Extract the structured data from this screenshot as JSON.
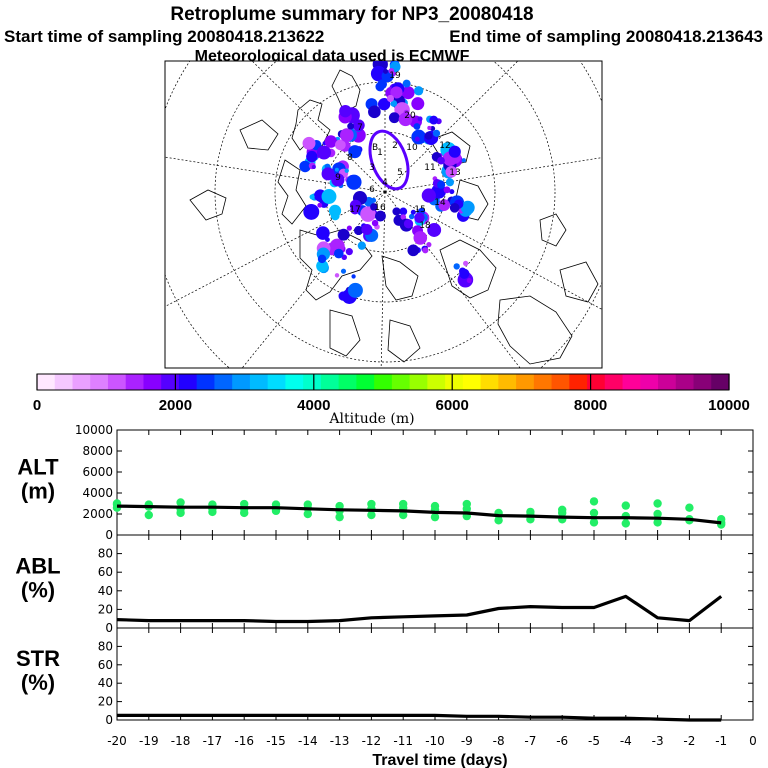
{
  "header": {
    "title": "Retroplume summary for NP3_20080418",
    "start_label": "Start time of sampling 20080418.213622",
    "end_label": "End time of sampling 20080418.213643",
    "met_label": "Meteorological data used is ECMWF"
  },
  "map": {
    "day_labels": [
      "1",
      "2",
      "3",
      "4",
      "5",
      "6",
      "7",
      "8",
      "9",
      "10",
      "11",
      "12",
      "13",
      "14",
      "15",
      "16",
      "17",
      "18",
      "19",
      "20"
    ],
    "center_label": "B"
  },
  "colorbar": {
    "label": "Altitude (m)",
    "range": [
      0,
      10000
    ],
    "tick_labels": [
      "0",
      "2000",
      "4000",
      "6000",
      "8000",
      "10000"
    ],
    "tick_values": [
      0,
      2000,
      4000,
      6000,
      8000,
      10000
    ],
    "colors": [
      "#ffe8ff",
      "#f5c8ff",
      "#eaa0ff",
      "#de80ff",
      "#cc55ff",
      "#aa22ff",
      "#8800ff",
      "#5500ff",
      "#2200ff",
      "#0033ff",
      "#0066ff",
      "#0099ff",
      "#00bbff",
      "#00ddff",
      "#00ffee",
      "#00ffcc",
      "#00ff99",
      "#00ff66",
      "#00ff33",
      "#33ff00",
      "#66ff00",
      "#99ff00",
      "#ccff00",
      "#eeff00",
      "#ffff00",
      "#ffdd00",
      "#ffbb00",
      "#ff9900",
      "#ff7700",
      "#ff5500",
      "#ff2200",
      "#ff0033",
      "#ff0066",
      "#ff0099",
      "#ee00aa",
      "#cc0099",
      "#aa0088",
      "#880077",
      "#660066"
    ]
  },
  "chart_data": [
    {
      "type": "line",
      "panel": "ALT",
      "ylabel": "ALT\n(m)",
      "ylabel_lines": [
        "ALT",
        "(m)"
      ],
      "ylim": [
        0,
        10000
      ],
      "yticks": [
        0,
        2000,
        4000,
        6000,
        8000,
        10000
      ],
      "ytick_labels": [
        "0",
        "2000",
        "4000",
        "6000",
        "8000",
        "10000"
      ],
      "xlim": [
        -20,
        0
      ],
      "x": [
        -20,
        -19,
        -18,
        -17,
        -16,
        -15,
        -14,
        -13,
        -12,
        -11,
        -10,
        -9,
        -8,
        -7,
        -6,
        -5,
        -4,
        -3,
        -2,
        -1
      ],
      "series": [
        {
          "name": "mean altitude",
          "values": [
            2750,
            2700,
            2650,
            2650,
            2600,
            2600,
            2500,
            2400,
            2350,
            2300,
            2150,
            2100,
            1850,
            1800,
            1700,
            1650,
            1650,
            1600,
            1500,
            1150
          ]
        },
        {
          "name": "cluster upper",
          "values": [
            3000,
            2900,
            3100,
            2900,
            2950,
            2900,
            2900,
            2750,
            2950,
            2950,
            2750,
            2950,
            2100,
            2200,
            2400,
            3200,
            2800,
            3000,
            2600,
            1500
          ]
        },
        {
          "name": "cluster mid",
          "values": [
            2600,
            2700,
            2500,
            2500,
            2500,
            2500,
            2550,
            2300,
            2500,
            2600,
            2400,
            2500,
            1900,
            1900,
            2100,
            2100,
            1800,
            2000,
            1500,
            1200
          ]
        },
        {
          "name": "cluster lower",
          "values": [
            2900,
            1900,
            2100,
            2200,
            2100,
            2300,
            2000,
            1700,
            1900,
            1900,
            1700,
            1800,
            1400,
            1500,
            1500,
            1200,
            1100,
            1200,
            1400,
            1000
          ]
        }
      ]
    },
    {
      "type": "line",
      "panel": "ABL",
      "ylabel_lines": [
        "ABL",
        "(%)"
      ],
      "ylim": [
        0,
        100
      ],
      "yticks": [
        0,
        20,
        40,
        60,
        80
      ],
      "ytick_labels": [
        "0",
        "20",
        "40",
        "60",
        "80"
      ],
      "xlim": [
        -20,
        0
      ],
      "x": [
        -20,
        -19,
        -18,
        -17,
        -16,
        -15,
        -14,
        -13,
        -12,
        -11,
        -10,
        -9,
        -8,
        -7,
        -6,
        -5,
        -4,
        -3,
        -2,
        -1
      ],
      "series": [
        {
          "name": "ABL fraction",
          "values": [
            9,
            8,
            8,
            8,
            8,
            7,
            7,
            8,
            11,
            12,
            13,
            14,
            21,
            23,
            22,
            22,
            34,
            11,
            8,
            34
          ]
        }
      ]
    },
    {
      "type": "line",
      "panel": "STR",
      "ylabel_lines": [
        "STR",
        "(%)"
      ],
      "ylim": [
        0,
        100
      ],
      "yticks": [
        0,
        20,
        40,
        60,
        80
      ],
      "ytick_labels": [
        "0",
        "20",
        "40",
        "60",
        "80"
      ],
      "xlim": [
        -20,
        0
      ],
      "x": [
        -20,
        -19,
        -18,
        -17,
        -16,
        -15,
        -14,
        -13,
        -12,
        -11,
        -10,
        -9,
        -8,
        -7,
        -6,
        -5,
        -4,
        -3,
        -2,
        -1
      ],
      "xticks": [
        -20,
        -19,
        -18,
        -17,
        -16,
        -15,
        -14,
        -13,
        -12,
        -11,
        -10,
        -9,
        -8,
        -7,
        -6,
        -5,
        -4,
        -3,
        -2,
        -1,
        0
      ],
      "xtick_labels": [
        "-20",
        "-19",
        "-18",
        "-17",
        "-16",
        "-15",
        "-14",
        "-13",
        "-12",
        "-11",
        "-10",
        "-9",
        "-8",
        "-7",
        "-6",
        "-5",
        "-4",
        "-3",
        "-2",
        "-1",
        "0"
      ],
      "xlabel": "Travel time (days)",
      "series": [
        {
          "name": "stratospheric fraction",
          "values": [
            5,
            5,
            5,
            5,
            5,
            5,
            5,
            5,
            5,
            5,
            5,
            4,
            4,
            3,
            3,
            2,
            2,
            1,
            0,
            0
          ]
        }
      ]
    }
  ]
}
